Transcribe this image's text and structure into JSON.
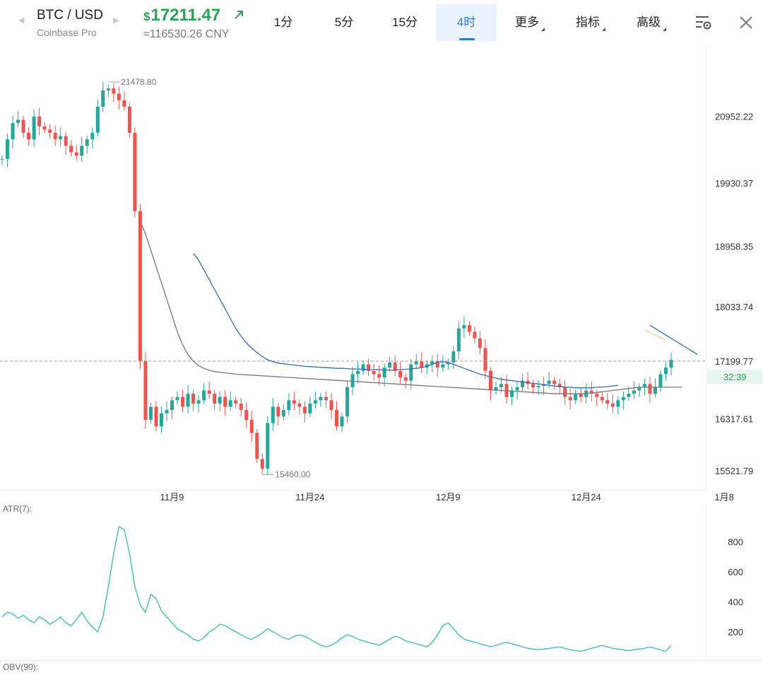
{
  "header": {
    "pair": "BTC / USD",
    "exchange": "Coinbase Pro",
    "price_currency": "$",
    "price": "17211.47",
    "price_cny": "≈116530.26 CNY",
    "up_color": "#2aa454",
    "icons": [
      "prev-icon",
      "next-icon",
      "up-right-arrow-icon",
      "settings-list-icon",
      "close-icon"
    ]
  },
  "timeframes": [
    {
      "label": "1分",
      "active": false,
      "dropdown": false
    },
    {
      "label": "5分",
      "active": false,
      "dropdown": false
    },
    {
      "label": "15分",
      "active": false,
      "dropdown": false
    },
    {
      "label": "4时",
      "active": true,
      "dropdown": false
    },
    {
      "label": "更多",
      "active": false,
      "dropdown": true
    },
    {
      "label": "指标",
      "active": false,
      "dropdown": true
    },
    {
      "label": "高级",
      "active": false,
      "dropdown": true
    }
  ],
  "main_chart": {
    "high_label": "21478.80",
    "low_label": "15460.00",
    "current_price_label": "17199.77",
    "countdown_label": "32:39",
    "up_color": "#26a69a",
    "down_color": "#ef5350",
    "ma_colors": [
      "#2f6fb5",
      "#777777",
      "#f0c89e"
    ]
  },
  "indicators": {
    "atr_label": "ATR(7):",
    "obv_label": "OBV(90):",
    "atr_color": "#3fc5a4"
  },
  "chart_data": [
    {
      "type": "candlestick",
      "series_name": "BTC / USD 4H",
      "ylim": [
        15250,
        21750
      ],
      "y_ticks": [
        15521.79,
        16317.61,
        17199.77,
        18033.74,
        18958.35,
        19930.37,
        20952.22
      ],
      "y_tick_labels": [
        "15521.79",
        "16317.61",
        "18033.74",
        "18958.35",
        "19930.37",
        "20952.22"
      ],
      "x_ticks": [
        {
          "i": 32,
          "label": "11月9"
        },
        {
          "i": 58,
          "label": "11月24"
        },
        {
          "i": 84,
          "label": "12月9"
        },
        {
          "i": 110,
          "label": "12月24"
        },
        {
          "i": 136,
          "label": "1月8"
        }
      ],
      "high": 21478.8,
      "low": 15460.0,
      "close": [
        20300,
        20600,
        20850,
        20900,
        20700,
        20600,
        20950,
        20800,
        20750,
        20700,
        20600,
        20650,
        20500,
        20400,
        20350,
        20500,
        20600,
        20700,
        21100,
        21350,
        21380,
        21300,
        21200,
        21100,
        20700,
        19500,
        17200,
        16300,
        16500,
        16200,
        16400,
        16450,
        16600,
        16650,
        16500,
        16700,
        16550,
        16600,
        16750,
        16700,
        16550,
        16650,
        16500,
        16600,
        16550,
        16450,
        16300,
        16100,
        15700,
        15550,
        16250,
        16500,
        16350,
        16450,
        16600,
        16550,
        16500,
        16400,
        16550,
        16600,
        16650,
        16600,
        16450,
        16200,
        16350,
        16800,
        17000,
        17050,
        17150,
        17050,
        17000,
        16950,
        17100,
        17180,
        17050,
        16950,
        16900,
        17150,
        17200,
        17100,
        17150,
        17200,
        17100,
        17150,
        17180,
        17350,
        17700,
        17750,
        17650,
        17550,
        17400,
        17050,
        16750,
        16800,
        16850,
        16650,
        16750,
        16800,
        16900,
        16850,
        16800,
        16820,
        16850,
        16900,
        16850,
        16800,
        16650,
        16600,
        16700,
        16650,
        16750,
        16700,
        16650,
        16600,
        16550,
        16500,
        16600,
        16650,
        16700,
        16750,
        16800,
        16850,
        16700,
        16800,
        17000,
        17100,
        17220
      ],
      "ma": [
        {
          "name": "MA-blue",
          "color": "#2f6fb5",
          "values": [
            null,
            null,
            null,
            null,
            null,
            null,
            null,
            null,
            null,
            null,
            null,
            null,
            null,
            null,
            null,
            null,
            null,
            null,
            null,
            null,
            null,
            null,
            null,
            null,
            null,
            null,
            null,
            null,
            null,
            null,
            null,
            null,
            null,
            null,
            null,
            null,
            18850,
            18750,
            18600,
            18450,
            18300,
            18150,
            18000,
            17850,
            17700,
            17580,
            17480,
            17400,
            17330,
            17270,
            17220,
            17190,
            17170,
            17160,
            17150,
            17140,
            17130,
            17120,
            17115,
            17110,
            17105,
            17100,
            17095,
            17090,
            17090,
            17085,
            17080,
            17080,
            17075,
            17070,
            17070,
            17070,
            17065,
            17060,
            17065,
            17070,
            17075,
            17080,
            17090,
            17100,
            17120,
            17150,
            17180,
            17190,
            17180,
            17150,
            17120,
            17090,
            17060,
            17030,
            17000,
            16980,
            16960,
            16940,
            16920,
            16910,
            16900,
            16890,
            16880,
            16870,
            16860,
            16850,
            16840,
            16830,
            16820,
            16810,
            16800,
            16800,
            16790,
            16790,
            16790,
            16790,
            16800,
            16800,
            16810,
            16820,
            16830,
            null,
            null,
            null,
            null,
            null,
            17750,
            17700,
            17650,
            17600,
            17550,
            17500,
            17450,
            17400,
            17350,
            17300
          ]
        },
        {
          "name": "MA-gray",
          "color": "#777777",
          "values": [
            null,
            null,
            null,
            null,
            null,
            null,
            null,
            null,
            null,
            null,
            null,
            null,
            null,
            null,
            null,
            null,
            null,
            null,
            null,
            null,
            null,
            null,
            null,
            null,
            null,
            null,
            19350,
            19150,
            18900,
            18650,
            18400,
            18150,
            17900,
            17650,
            17450,
            17300,
            17200,
            17130,
            17090,
            17060,
            17040,
            17030,
            17020,
            17010,
            17000,
            16995,
            16990,
            16985,
            16980,
            16975,
            16970,
            16965,
            16960,
            16955,
            16950,
            16945,
            16940,
            16935,
            16930,
            16925,
            16920,
            16915,
            16910,
            16905,
            16900,
            16895,
            16890,
            16885,
            16880,
            16875,
            16870,
            16865,
            16860,
            16855,
            16850,
            16845,
            16840,
            16835,
            16830,
            16825,
            16820,
            16815,
            16810,
            16805,
            16800,
            16795,
            16790,
            16785,
            16780,
            16775,
            16770,
            16765,
            16760,
            16755,
            16750,
            16745,
            16740,
            16735,
            16730,
            16725,
            16720,
            16715,
            16710,
            16705,
            16700,
            16700,
            16700,
            16700,
            16700,
            16700,
            16705,
            16710,
            16720,
            16730,
            16740,
            16750,
            16760,
            16770,
            16780,
            16790,
            16800,
            16800,
            16800,
            16800,
            16800,
            16800,
            16800,
            16800,
            16800
          ]
        },
        {
          "name": "MA-orange",
          "color": "#f0c89e",
          "values": [
            null,
            null,
            null,
            null,
            null,
            null,
            null,
            null,
            null,
            null,
            null,
            null,
            null,
            null,
            null,
            null,
            null,
            null,
            null,
            null,
            null,
            null,
            null,
            null,
            null,
            null,
            null,
            null,
            null,
            null,
            null,
            null,
            null,
            null,
            null,
            null,
            null,
            null,
            null,
            null,
            null,
            null,
            null,
            null,
            null,
            null,
            null,
            null,
            null,
            null,
            null,
            null,
            null,
            null,
            null,
            null,
            null,
            null,
            null,
            null,
            null,
            null,
            null,
            null,
            null,
            null,
            null,
            null,
            null,
            null,
            null,
            null,
            null,
            null,
            null,
            null,
            null,
            null,
            null,
            null,
            null,
            null,
            null,
            null,
            null,
            null,
            null,
            null,
            null,
            null,
            null,
            null,
            null,
            null,
            null,
            null,
            null,
            null,
            null,
            null,
            null,
            null,
            null,
            null,
            null,
            null,
            null,
            null,
            null,
            null,
            null,
            null,
            null,
            null,
            null,
            null,
            null,
            null,
            null,
            null,
            null,
            17680,
            17640,
            17600,
            17560,
            17520
          ]
        }
      ]
    },
    {
      "type": "line",
      "series_name": "ATR(7)",
      "ylim": [
        40,
        1000
      ],
      "y_ticks": [
        200,
        400,
        600,
        800
      ],
      "values": [
        300,
        330,
        320,
        290,
        310,
        280,
        260,
        300,
        280,
        250,
        270,
        300,
        260,
        240,
        280,
        330,
        270,
        230,
        200,
        300,
        500,
        720,
        900,
        880,
        720,
        500,
        380,
        330,
        450,
        420,
        340,
        300,
        260,
        220,
        200,
        180,
        150,
        140,
        160,
        200,
        220,
        250,
        240,
        220,
        200,
        180,
        160,
        150,
        170,
        190,
        220,
        200,
        180,
        160,
        150,
        170,
        180,
        170,
        150,
        130,
        110,
        100,
        110,
        130,
        160,
        180,
        170,
        150,
        140,
        130,
        120,
        110,
        130,
        150,
        170,
        160,
        140,
        130,
        120,
        110,
        100,
        130,
        180,
        240,
        260,
        220,
        180,
        150,
        140,
        130,
        120,
        110,
        100,
        110,
        120,
        130,
        120,
        110,
        100,
        90,
        85,
        80,
        85,
        90,
        95,
        100,
        90,
        80,
        75,
        70,
        80,
        90,
        100,
        110,
        100,
        90,
        85,
        80,
        75,
        80,
        85,
        90,
        100,
        90,
        80,
        70,
        110
      ]
    }
  ]
}
